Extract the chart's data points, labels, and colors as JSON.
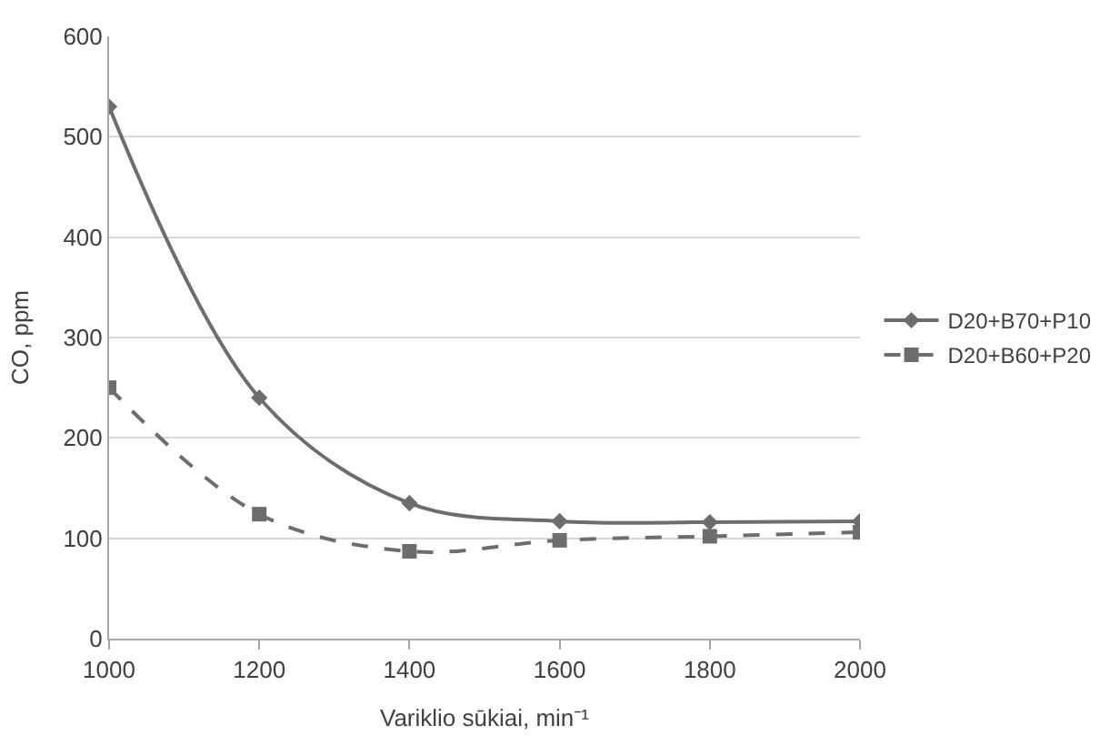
{
  "chart_data": {
    "type": "line",
    "xlabel": "Variklio sūkiai, min⁻¹",
    "ylabel": "CO, ppm",
    "x": [
      1000,
      1200,
      1400,
      1600,
      1800,
      2000
    ],
    "series": [
      {
        "name": "D20+B70+P10",
        "color": "#6d6d6d",
        "values": [
          530,
          240,
          135,
          117,
          116,
          117
        ],
        "marker": "diamond",
        "line_style": "solid"
      },
      {
        "name": "D20+B60+P20",
        "color": "#6d6d6d",
        "values": [
          250,
          124,
          87,
          98,
          102,
          106
        ],
        "marker": "square",
        "line_style": "dashed"
      }
    ],
    "xlim": [
      1000,
      2000
    ],
    "xticks": [
      1000,
      1200,
      1400,
      1600,
      1800,
      2000
    ],
    "ylim": [
      0,
      600
    ],
    "yticks": [
      0,
      100,
      200,
      300,
      400,
      500,
      600
    ],
    "grid": "y",
    "legend": "right"
  }
}
